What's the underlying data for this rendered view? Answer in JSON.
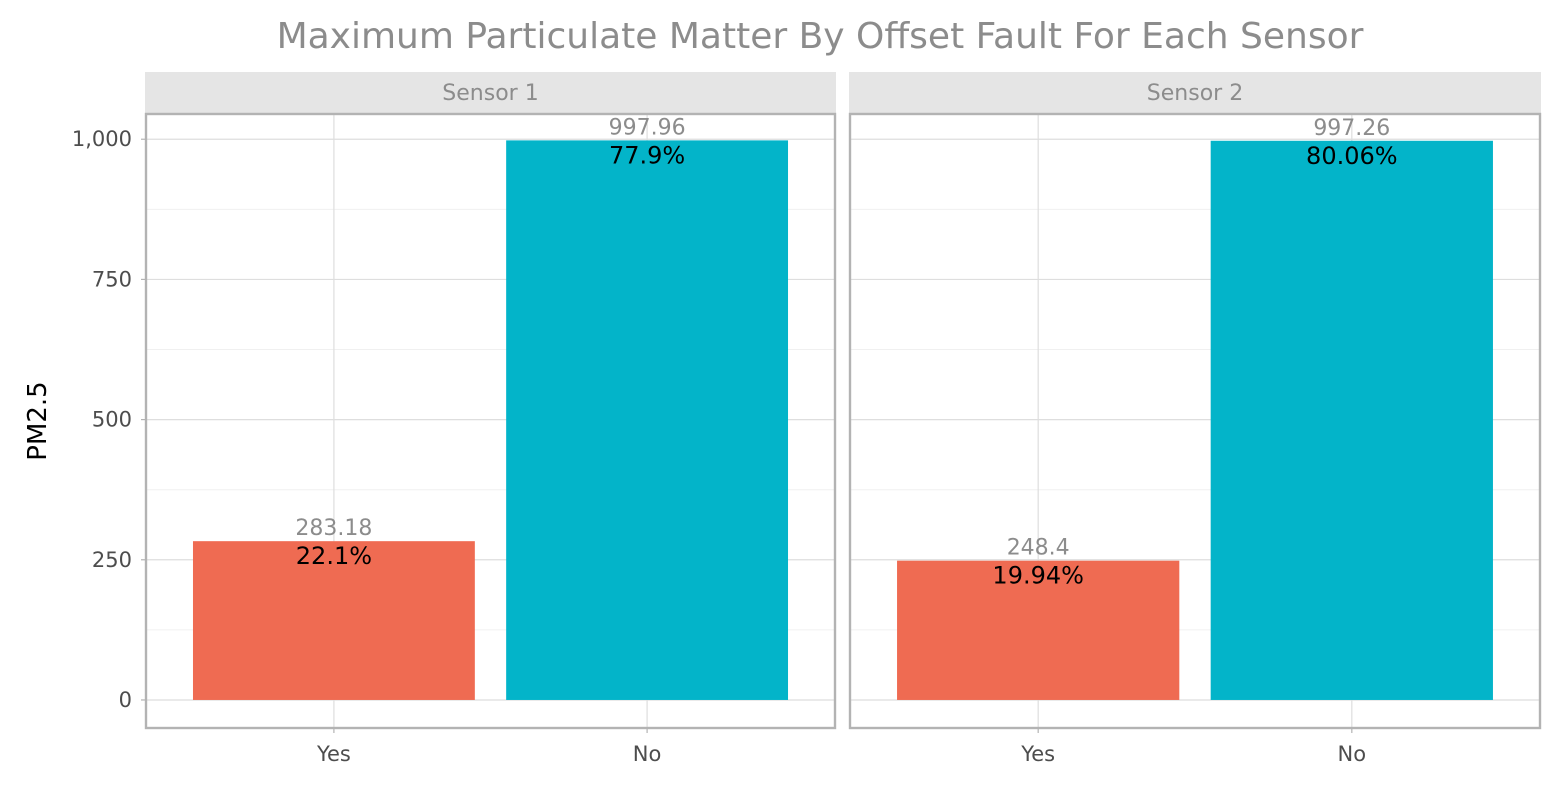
{
  "chart_data": {
    "type": "bar",
    "title": "Maximum Particulate Matter By Offset Fault For Each Sensor",
    "ylabel": "PM2.5",
    "xlabel": "",
    "ylim": [
      -50,
      1045
    ],
    "yticks": [
      0,
      250,
      500,
      750,
      1000
    ],
    "ytick_labels": [
      "0",
      "250",
      "500",
      "750",
      "1,000"
    ],
    "categories": [
      "Yes",
      "No"
    ],
    "grid": true,
    "colors": {
      "Yes": "#ef6b52",
      "No": "#03b4c9"
    },
    "panels": [
      {
        "label": "Sensor 1",
        "values": [
          283.18,
          997.96
        ],
        "value_labels": [
          "283.18",
          "997.96"
        ],
        "pct_labels": [
          "22.1%",
          "77.9%"
        ]
      },
      {
        "label": "Sensor 2",
        "values": [
          248.4,
          997.26
        ],
        "value_labels": [
          "248.4",
          "997.26"
        ],
        "pct_labels": [
          "19.94%",
          "80.06%"
        ]
      }
    ]
  }
}
